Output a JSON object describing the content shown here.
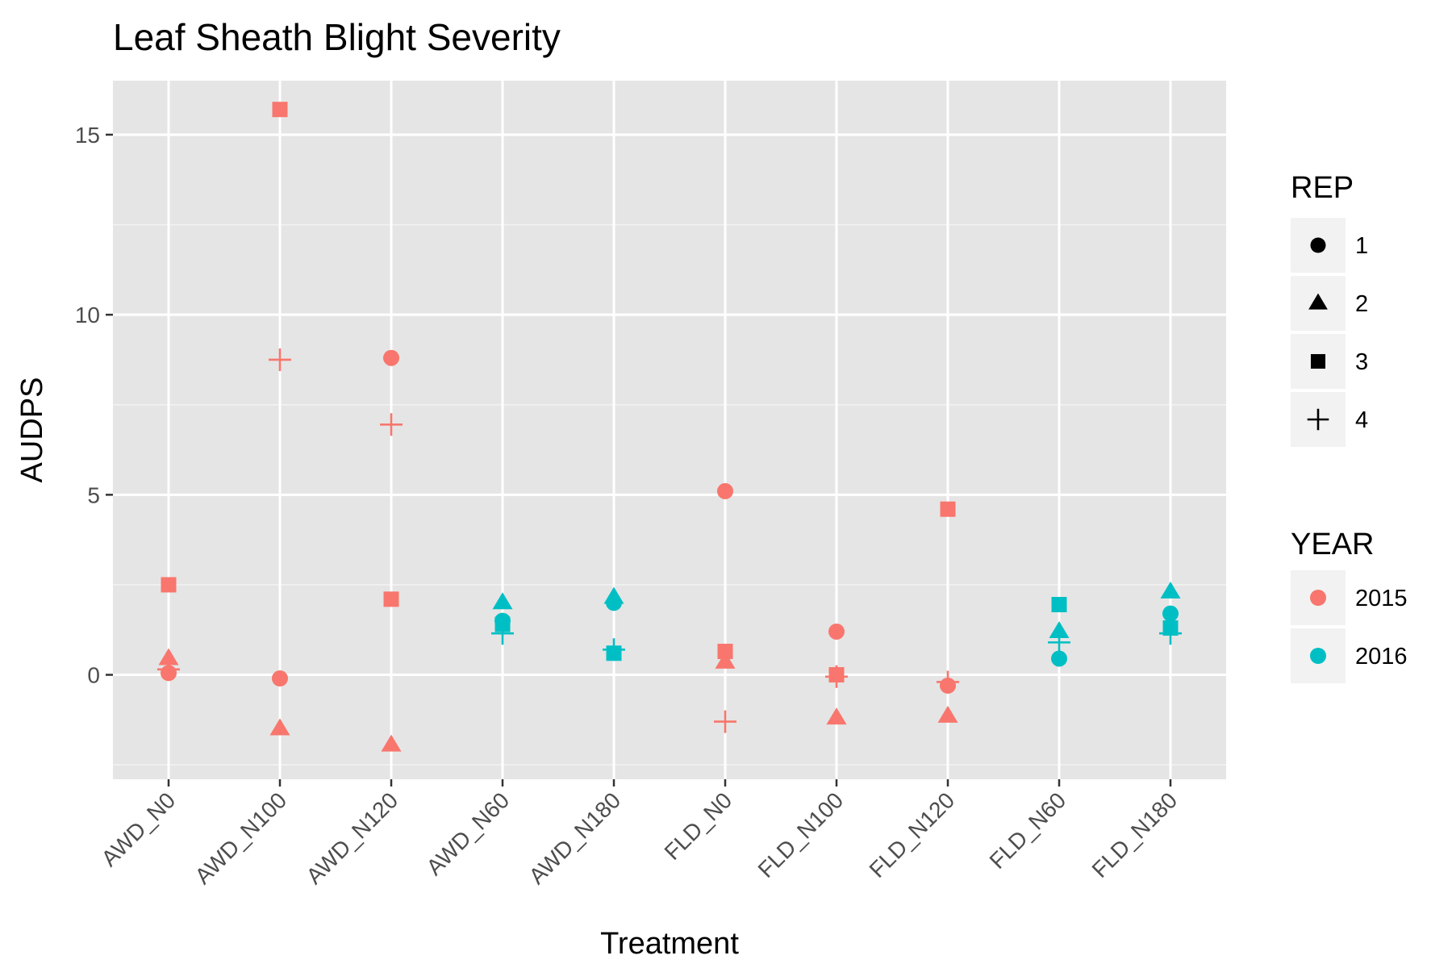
{
  "chart_data": {
    "type": "scatter",
    "title": "Leaf Sheath Blight Severity",
    "xlabel": "Treatment",
    "ylabel": "AUDPS",
    "categories": [
      "AWD_N0",
      "AWD_N100",
      "AWD_N120",
      "AWD_N60",
      "AWD_N180",
      "FLD_N0",
      "FLD_N100",
      "FLD_N120",
      "FLD_N60",
      "FLD_N180"
    ],
    "ylim": [
      -2.9,
      16.5
    ],
    "yticks": [
      0,
      5,
      10,
      15
    ],
    "yticklabels": [
      "0",
      "5",
      "10",
      "15"
    ],
    "grid": true,
    "legend_position": "right",
    "legends": {
      "shape": {
        "title": "REP",
        "items": [
          {
            "label": "1",
            "shape": "circle"
          },
          {
            "label": "2",
            "shape": "triangle"
          },
          {
            "label": "3",
            "shape": "square"
          },
          {
            "label": "4",
            "shape": "plus"
          }
        ]
      },
      "color": {
        "title": "YEAR",
        "items": [
          {
            "label": "2015",
            "color": "#F8766D"
          },
          {
            "label": "2016",
            "color": "#00BFC4"
          }
        ]
      }
    },
    "points": [
      {
        "x": "AWD_N0",
        "y": 0.05,
        "rep": "1",
        "year": "2015"
      },
      {
        "x": "AWD_N0",
        "y": 0.45,
        "rep": "2",
        "year": "2015"
      },
      {
        "x": "AWD_N0",
        "y": 2.5,
        "rep": "3",
        "year": "2015"
      },
      {
        "x": "AWD_N0",
        "y": 0.15,
        "rep": "4",
        "year": "2015"
      },
      {
        "x": "AWD_N100",
        "y": -0.1,
        "rep": "1",
        "year": "2015"
      },
      {
        "x": "AWD_N100",
        "y": -1.5,
        "rep": "2",
        "year": "2015"
      },
      {
        "x": "AWD_N100",
        "y": 15.7,
        "rep": "3",
        "year": "2015"
      },
      {
        "x": "AWD_N100",
        "y": 8.75,
        "rep": "4",
        "year": "2015"
      },
      {
        "x": "AWD_N120",
        "y": 8.8,
        "rep": "1",
        "year": "2015"
      },
      {
        "x": "AWD_N120",
        "y": -1.95,
        "rep": "2",
        "year": "2015"
      },
      {
        "x": "AWD_N120",
        "y": 2.1,
        "rep": "3",
        "year": "2015"
      },
      {
        "x": "AWD_N120",
        "y": 6.95,
        "rep": "4",
        "year": "2015"
      },
      {
        "x": "AWD_N60",
        "y": 1.5,
        "rep": "1",
        "year": "2016"
      },
      {
        "x": "AWD_N60",
        "y": 2.0,
        "rep": "2",
        "year": "2016"
      },
      {
        "x": "AWD_N60",
        "y": 1.4,
        "rep": "3",
        "year": "2016"
      },
      {
        "x": "AWD_N60",
        "y": 1.15,
        "rep": "4",
        "year": "2016"
      },
      {
        "x": "AWD_N180",
        "y": 2.0,
        "rep": "1",
        "year": "2016"
      },
      {
        "x": "AWD_N180",
        "y": 2.15,
        "rep": "2",
        "year": "2016"
      },
      {
        "x": "AWD_N180",
        "y": 0.6,
        "rep": "3",
        "year": "2016"
      },
      {
        "x": "AWD_N180",
        "y": 0.7,
        "rep": "4",
        "year": "2016"
      },
      {
        "x": "FLD_N0",
        "y": 5.1,
        "rep": "1",
        "year": "2015"
      },
      {
        "x": "FLD_N0",
        "y": 0.35,
        "rep": "2",
        "year": "2015"
      },
      {
        "x": "FLD_N0",
        "y": 0.65,
        "rep": "3",
        "year": "2015"
      },
      {
        "x": "FLD_N0",
        "y": -1.3,
        "rep": "4",
        "year": "2015"
      },
      {
        "x": "FLD_N100",
        "y": 1.2,
        "rep": "1",
        "year": "2015"
      },
      {
        "x": "FLD_N100",
        "y": -1.2,
        "rep": "2",
        "year": "2015"
      },
      {
        "x": "FLD_N100",
        "y": 0.0,
        "rep": "3",
        "year": "2015"
      },
      {
        "x": "FLD_N100",
        "y": -0.05,
        "rep": "4",
        "year": "2015"
      },
      {
        "x": "FLD_N120",
        "y": -0.3,
        "rep": "1",
        "year": "2015"
      },
      {
        "x": "FLD_N120",
        "y": -1.15,
        "rep": "2",
        "year": "2015"
      },
      {
        "x": "FLD_N120",
        "y": 4.6,
        "rep": "3",
        "year": "2015"
      },
      {
        "x": "FLD_N120",
        "y": -0.2,
        "rep": "4",
        "year": "2015"
      },
      {
        "x": "FLD_N60",
        "y": 0.45,
        "rep": "1",
        "year": "2016"
      },
      {
        "x": "FLD_N60",
        "y": 1.2,
        "rep": "2",
        "year": "2016"
      },
      {
        "x": "FLD_N60",
        "y": 1.95,
        "rep": "3",
        "year": "2016"
      },
      {
        "x": "FLD_N60",
        "y": 0.9,
        "rep": "4",
        "year": "2016"
      },
      {
        "x": "FLD_N180",
        "y": 1.7,
        "rep": "1",
        "year": "2016"
      },
      {
        "x": "FLD_N180",
        "y": 2.3,
        "rep": "2",
        "year": "2016"
      },
      {
        "x": "FLD_N180",
        "y": 1.3,
        "rep": "3",
        "year": "2016"
      },
      {
        "x": "FLD_N180",
        "y": 1.15,
        "rep": "4",
        "year": "2016"
      }
    ]
  }
}
